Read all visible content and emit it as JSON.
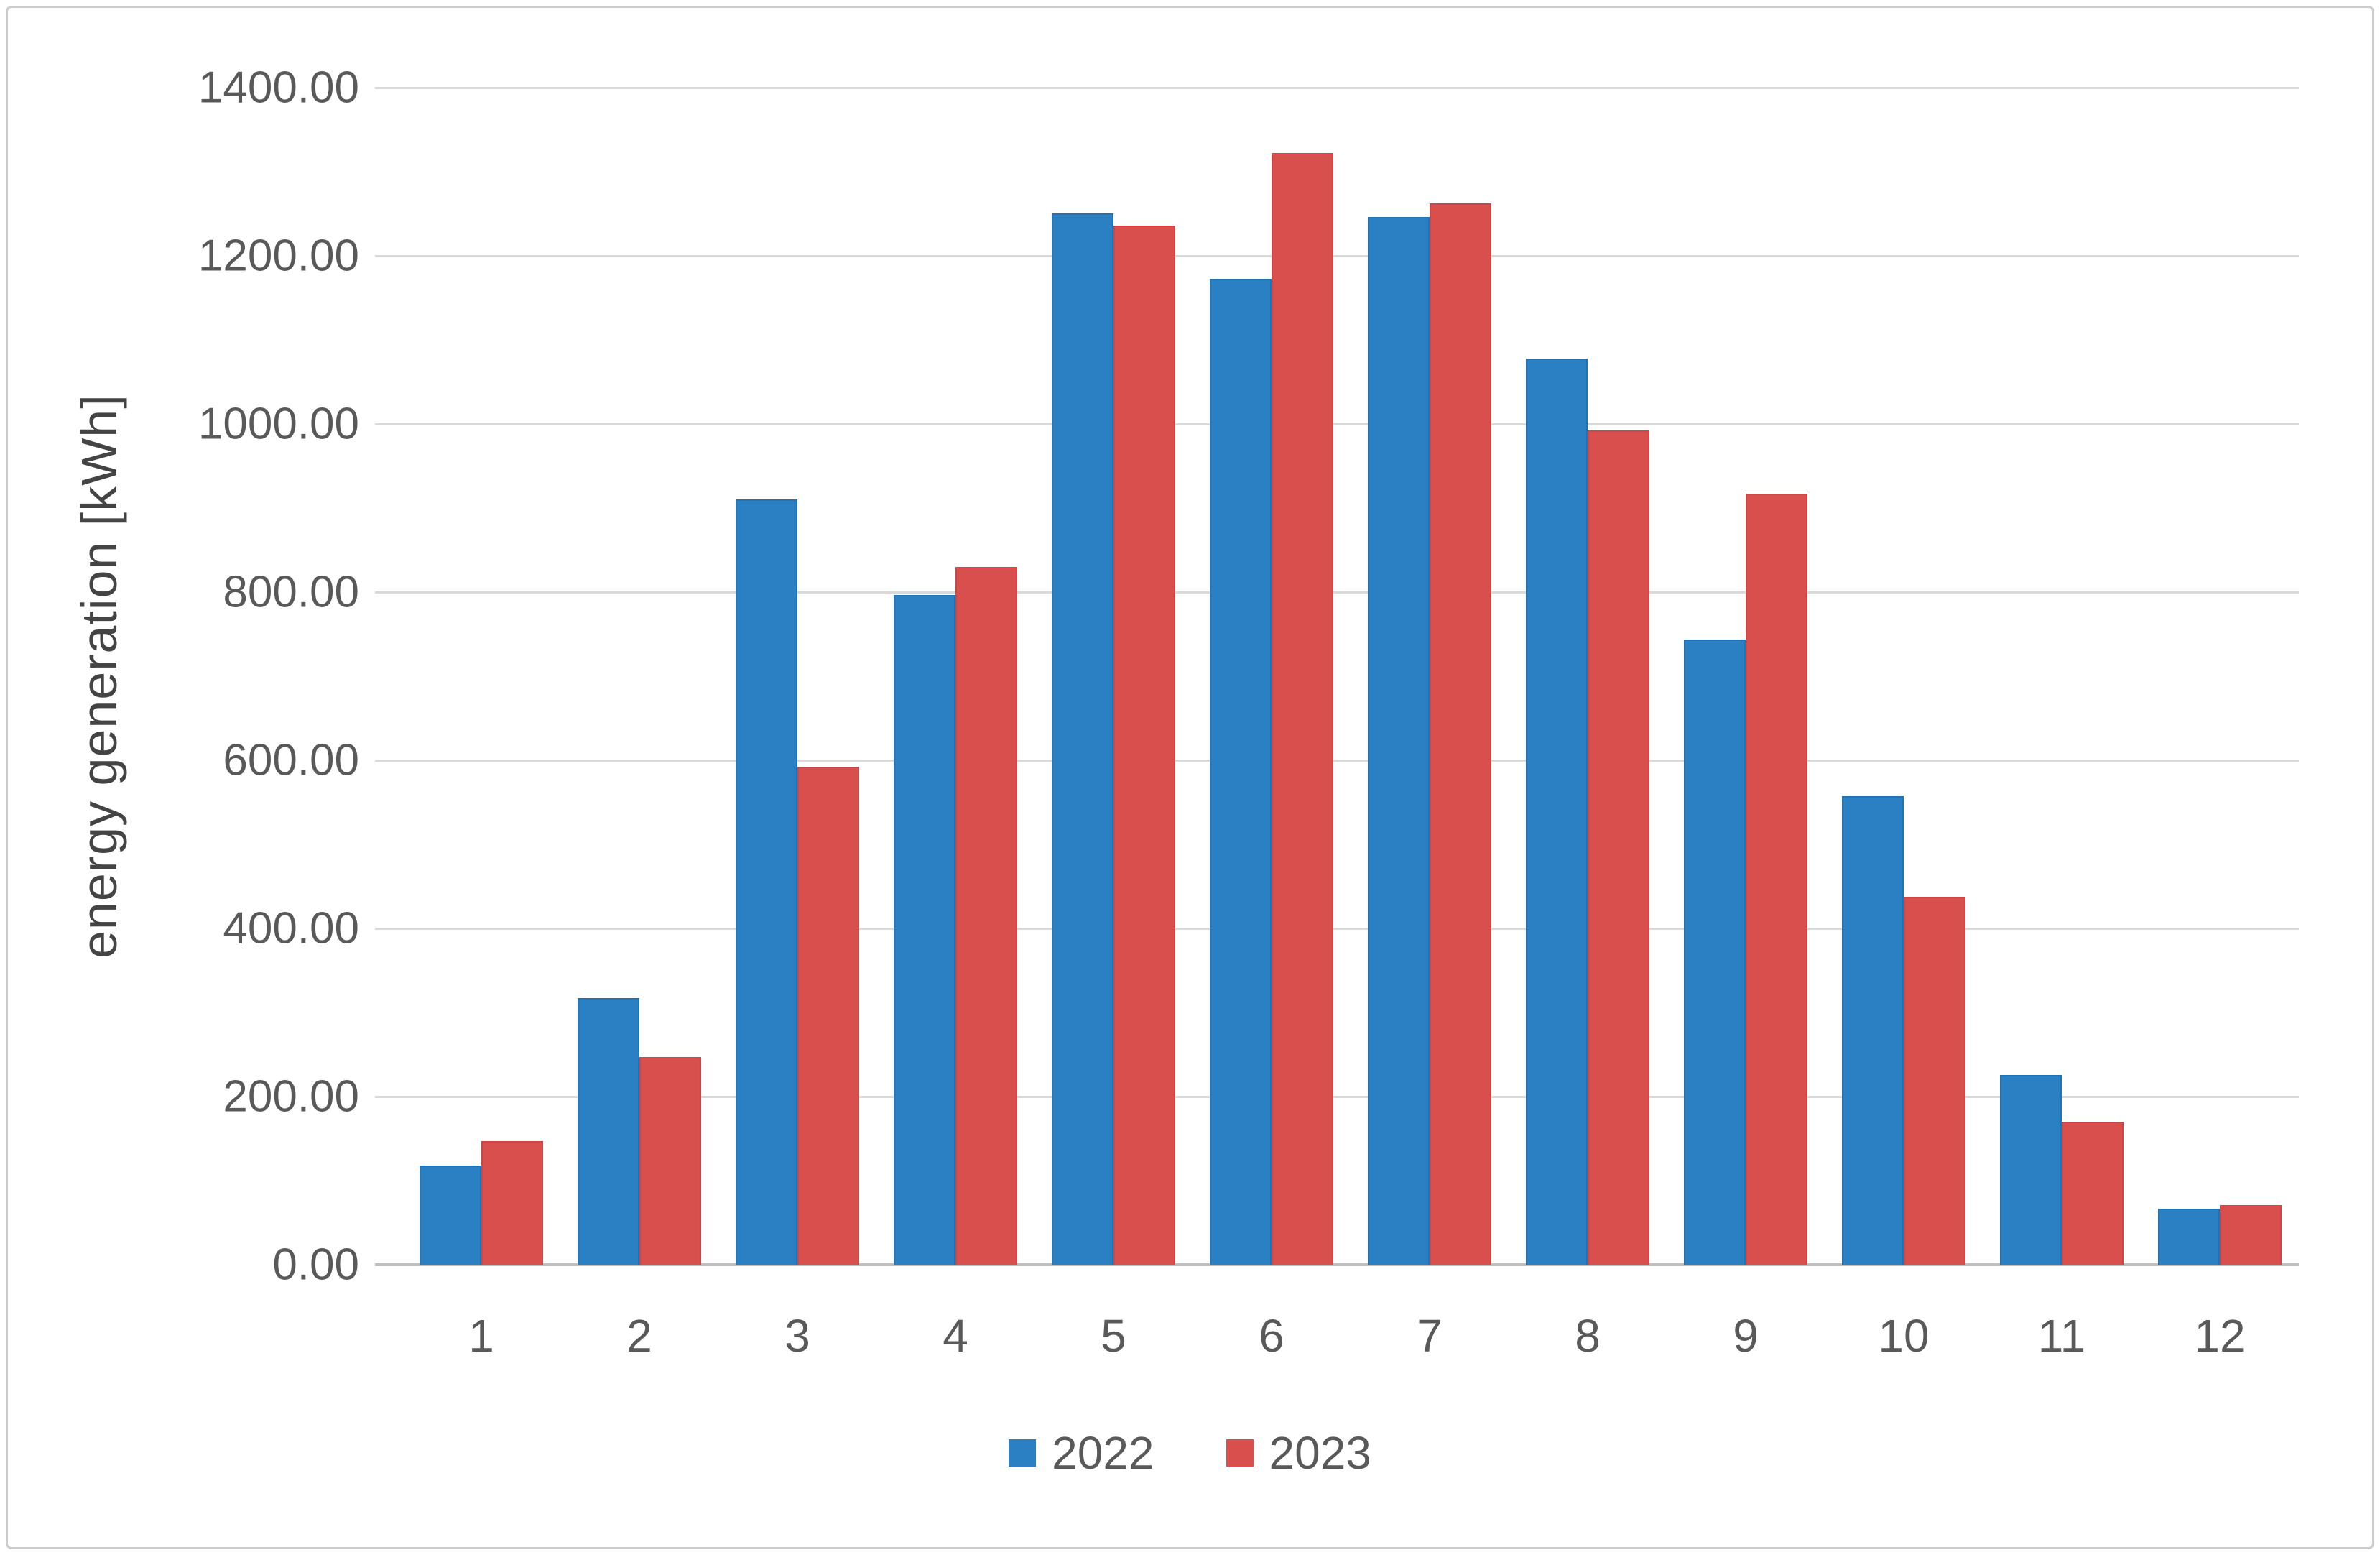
{
  "chart_data": {
    "type": "bar",
    "title": "",
    "xlabel": "",
    "ylabel": "energy generation [kWh]",
    "categories": [
      "1",
      "2",
      "3",
      "4",
      "5",
      "6",
      "7",
      "8",
      "9",
      "10",
      "11",
      "12"
    ],
    "series": [
      {
        "name": "2022",
        "color": "#2A80C2",
        "border_color": "#2173B4",
        "values": [
          118,
          317,
          910,
          797,
          1250,
          1173,
          1246,
          1078,
          744,
          557,
          226,
          67
        ]
      },
      {
        "name": "2023",
        "color": "#D94F4E",
        "border_color": "#CB4645",
        "values": [
          147,
          247,
          592,
          830,
          1236,
          1322,
          1262,
          992,
          917,
          438,
          170,
          71
        ]
      }
    ],
    "ylim": [
      0,
      1400
    ],
    "yticks": [
      0,
      200,
      400,
      600,
      800,
      1000,
      1200,
      1400
    ],
    "ytick_labels": [
      "0.00",
      "200.00",
      "400.00",
      "600.00",
      "800.00",
      "1000.00",
      "1200.00",
      "1400.00"
    ],
    "grid": "horizontal",
    "legend_position": "bottom"
  },
  "colors": {
    "gridline": "#D9D9D9",
    "axis_line": "#BFBFBF",
    "tick_text": "#595959",
    "frame_border": "#CCCCCC"
  }
}
